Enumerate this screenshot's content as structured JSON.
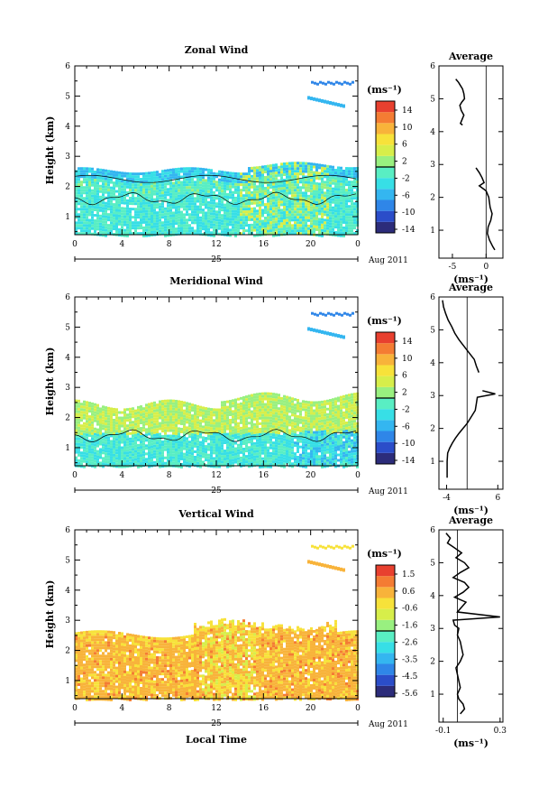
{
  "panels": [
    {
      "title": "Zonal Wind",
      "unit_label": "(ms⁻¹)",
      "colorbar_ticks": [
        "14",
        "10",
        "6",
        "2",
        "-2",
        "-6",
        "-10",
        "-14"
      ],
      "avg_title": "Average",
      "avg_xticks": [
        "-5",
        "0"
      ],
      "avg_xlabel": "(ms⁻¹)",
      "profile": [
        [
          -4.5,
          5.6
        ],
        [
          -4.1,
          5.5
        ],
        [
          -3.8,
          5.4
        ],
        [
          -3.5,
          5.3
        ],
        [
          -3.3,
          5.15
        ],
        [
          -3.2,
          5.0
        ],
        [
          -3.6,
          4.9
        ],
        [
          -3.9,
          4.8
        ],
        [
          -3.7,
          4.65
        ],
        [
          -3.3,
          4.5
        ],
        [
          -3.6,
          4.35
        ],
        [
          -3.8,
          4.25
        ],
        [
          -3.5,
          4.2
        ]
      ],
      "profile2": [
        [
          -1.5,
          2.9
        ],
        [
          -1.0,
          2.75
        ],
        [
          -0.6,
          2.6
        ],
        [
          -0.3,
          2.45
        ],
        [
          -1.0,
          2.35
        ],
        [
          0.0,
          2.2
        ],
        [
          0.4,
          2.0
        ],
        [
          0.6,
          1.7
        ],
        [
          0.9,
          1.5
        ],
        [
          0.7,
          1.3
        ],
        [
          0.3,
          1.1
        ],
        [
          0.2,
          0.9
        ],
        [
          0.5,
          0.7
        ],
        [
          1.0,
          0.5
        ],
        [
          1.3,
          0.4
        ]
      ]
    },
    {
      "title": "Meridional Wind",
      "unit_label": "(ms⁻¹)",
      "colorbar_ticks": [
        "14",
        "10",
        "6",
        "2",
        "-2",
        "-6",
        "-10",
        "-14"
      ],
      "avg_title": "Average",
      "avg_xticks": [
        "-4",
        "6"
      ],
      "avg_xlabel": "(ms⁻¹)",
      "profile": [
        [
          -4.8,
          5.9
        ],
        [
          -4.6,
          5.7
        ],
        [
          -4.2,
          5.5
        ],
        [
          -3.7,
          5.3
        ],
        [
          -3.0,
          5.1
        ],
        [
          -2.4,
          4.9
        ],
        [
          -1.6,
          4.7
        ],
        [
          -0.6,
          4.5
        ],
        [
          0.4,
          4.3
        ],
        [
          1.4,
          4.1
        ],
        [
          1.8,
          3.9
        ],
        [
          2.3,
          3.7
        ]
      ],
      "profile2": [
        [
          3.0,
          3.15
        ],
        [
          5.5,
          3.05
        ],
        [
          2.0,
          2.95
        ],
        [
          1.8,
          2.75
        ],
        [
          1.6,
          2.55
        ],
        [
          0.8,
          2.35
        ],
        [
          0.0,
          2.15
        ],
        [
          -0.8,
          2.0
        ],
        [
          -1.6,
          1.85
        ],
        [
          -2.3,
          1.7
        ],
        [
          -2.9,
          1.55
        ],
        [
          -3.4,
          1.4
        ],
        [
          -3.8,
          1.25
        ],
        [
          -3.9,
          1.0
        ],
        [
          -3.9,
          0.8
        ],
        [
          -3.9,
          0.5
        ]
      ]
    },
    {
      "title": "Vertical Wind",
      "unit_label": "(ms⁻¹)",
      "colorbar_ticks": [
        "1.5",
        "0.6",
        "-0.6",
        "-1.6",
        "-2.6",
        "-3.5",
        "-4.5",
        "-5.6"
      ],
      "avg_title": "Average",
      "avg_xticks": [
        "-0.1",
        "0.3"
      ],
      "avg_xlabel": "(ms⁻¹)",
      "profile": [
        [
          -0.08,
          5.9
        ],
        [
          -0.05,
          5.75
        ],
        [
          -0.07,
          5.6
        ],
        [
          -0.02,
          5.45
        ],
        [
          0.03,
          5.3
        ],
        [
          -0.01,
          5.15
        ],
        [
          0.05,
          5.0
        ],
        [
          0.08,
          4.85
        ],
        [
          0.02,
          4.7
        ],
        [
          -0.03,
          4.55
        ],
        [
          0.05,
          4.4
        ],
        [
          0.08,
          4.25
        ],
        [
          0.04,
          4.1
        ],
        [
          -0.02,
          3.95
        ],
        [
          0.06,
          3.8
        ],
        [
          0.03,
          3.65
        ],
        [
          0.0,
          3.5
        ],
        [
          0.3,
          3.35
        ],
        [
          -0.03,
          3.25
        ],
        [
          -0.02,
          3.1
        ],
        [
          0.01,
          3.0
        ],
        [
          0.0,
          2.8
        ],
        [
          0.02,
          2.6
        ],
        [
          0.03,
          2.4
        ],
        [
          0.04,
          2.2
        ],
        [
          0.02,
          2.0
        ],
        [
          -0.01,
          1.8
        ],
        [
          0.0,
          1.6
        ],
        [
          0.01,
          1.4
        ],
        [
          0.02,
          1.2
        ],
        [
          0.0,
          1.0
        ],
        [
          0.01,
          0.85
        ],
        [
          0.04,
          0.7
        ],
        [
          0.05,
          0.55
        ],
        [
          0.02,
          0.4
        ]
      ],
      "profile2": []
    }
  ],
  "height_label": "Height (km)",
  "xticks": [
    "0",
    "4",
    "8",
    "12",
    "16",
    "20",
    "0"
  ],
  "date_day": "25",
  "date_month": "Aug 2011",
  "xlabel_bottom": "Local Time",
  "chart_data": [
    {
      "type": "heatmap",
      "title": "Zonal Wind",
      "xlabel": "",
      "ylabel": "Height (km)",
      "xlim": [
        0,
        24
      ],
      "ylim": [
        0.4,
        6.0
      ],
      "colorbar_range": [
        -14,
        14
      ],
      "unit": "(ms⁻¹)",
      "dominant_values_ms": [
        -2,
        2
      ],
      "coverage_top_km": 2.5
    },
    {
      "type": "heatmap",
      "title": "Meridional Wind",
      "xlabel": "",
      "ylabel": "Height (km)",
      "xlim": [
        0,
        24
      ],
      "ylim": [
        0.4,
        6.0
      ],
      "colorbar_range": [
        -14,
        14
      ],
      "unit": "(ms⁻¹)",
      "dominant_values_ms": [
        -2,
        4
      ],
      "coverage_top_km": 2.6
    },
    {
      "type": "heatmap",
      "title": "Vertical Wind",
      "xlabel": "Local Time",
      "ylabel": "Height (km)",
      "xlim": [
        0,
        24
      ],
      "ylim": [
        0.4,
        6.0
      ],
      "colorbar_range": [
        -5.6,
        1.5
      ],
      "unit": "(ms⁻¹)",
      "dominant_values_ms": [
        0.6,
        1.0
      ],
      "coverage_top_km": 2.6
    }
  ]
}
